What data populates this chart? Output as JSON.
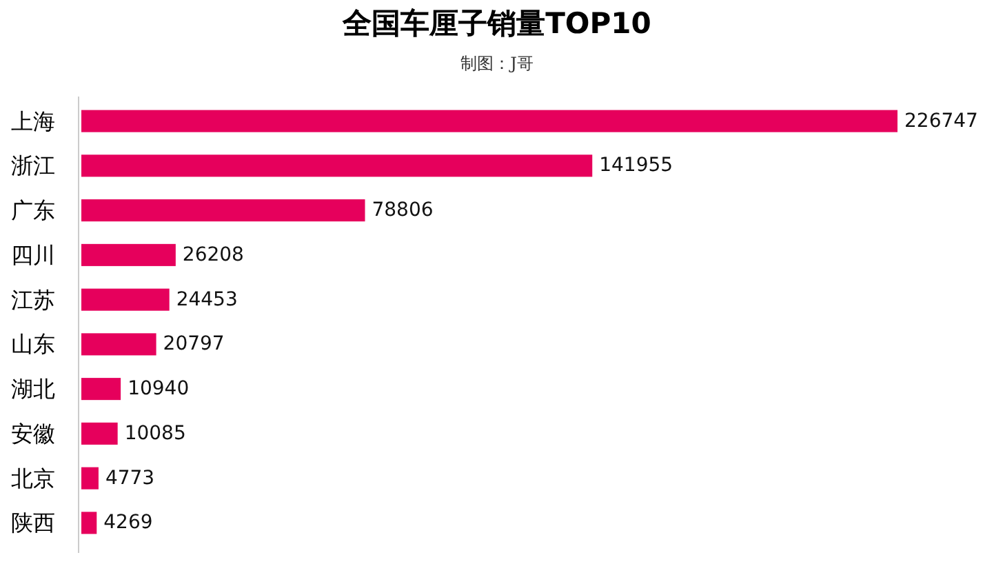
{
  "chart_data": {
    "type": "bar",
    "orientation": "horizontal",
    "title": "全国车厘子销量TOP10",
    "subtitle": "制图：J哥",
    "categories": [
      "上海",
      "浙江",
      "广东",
      "四川",
      "江苏",
      "山东",
      "湖北",
      "安徽",
      "北京",
      "陕西"
    ],
    "values": [
      226747,
      141955,
      78806,
      26208,
      24453,
      20797,
      10940,
      10085,
      4773,
      4269
    ],
    "color": "#e6005c",
    "data_labels": true
  }
}
